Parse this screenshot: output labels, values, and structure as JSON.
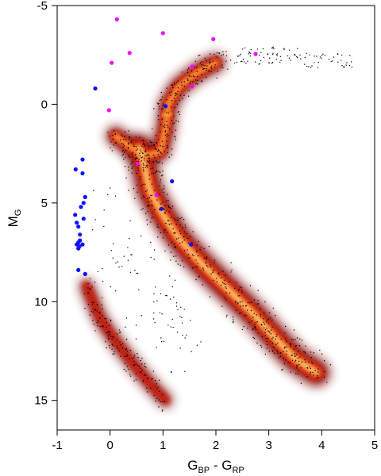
{
  "chart_data": {
    "type": "scatter",
    "title": "",
    "xlabel": "G",
    "xlabel_sub1": "BP",
    "xlabel_mid": " - G",
    "xlabel_sub2": "RP",
    "ylabel": "M",
    "ylabel_sub": "G",
    "xlim": [
      -1,
      5
    ],
    "ylim": [
      16.5,
      -5
    ],
    "y_inverted": true,
    "xticks": [
      -1,
      0,
      1,
      2,
      3,
      4,
      5
    ],
    "yticks": [
      -5,
      0,
      5,
      10,
      15
    ],
    "grid": false,
    "density_colormap": [
      "#000000",
      "#7a0000",
      "#c41a10",
      "#ef5a1a",
      "#ffb347",
      "#fff5c0"
    ],
    "series": [
      {
        "color": "#ff00ff",
        "x": [
          0.13,
          1.0,
          1.95,
          0.37,
          0.03,
          2.75,
          1.55,
          1.55,
          -0.02,
          0.52,
          0.88
        ],
        "y": [
          -4.3,
          -3.6,
          -3.3,
          -2.6,
          -2.1,
          -2.55,
          -1.9,
          -0.9,
          0.3,
          3.0,
          4.6
        ]
      },
      {
        "color": "#1010ff",
        "x": [
          -0.28,
          1.05,
          1.17,
          -0.52,
          -0.65,
          -0.52,
          -0.47,
          -0.5,
          -0.55,
          -0.5,
          -0.66,
          -0.63,
          -0.6,
          -0.57,
          -0.6,
          -0.63,
          -0.57,
          -0.6,
          -0.58,
          -0.52,
          -0.6,
          -0.47,
          0.97,
          1.53
        ],
        "y": [
          -0.8,
          0.1,
          3.9,
          2.8,
          3.3,
          3.5,
          4.7,
          5.0,
          5.2,
          5.8,
          5.6,
          6.0,
          6.2,
          6.6,
          7.0,
          7.1,
          6.9,
          7.3,
          7.2,
          7.1,
          8.4,
          8.6,
          5.3,
          7.1
        ]
      }
    ]
  }
}
